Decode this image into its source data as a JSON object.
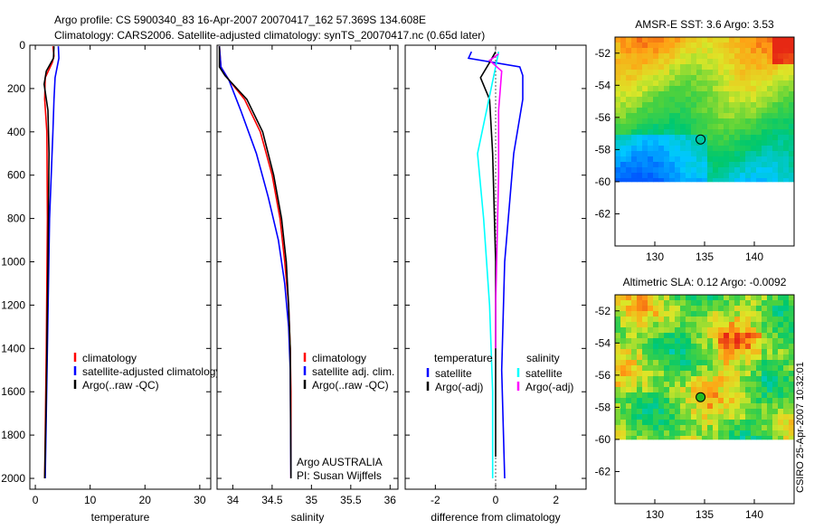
{
  "header": {
    "line1": "Argo profile: CS 5900340_83 16-Apr-2007 20070417_162 57.369S 134.608E",
    "line2": "Climatology: CARS2006. Satellite-adjusted climatology: synTS_20070417.nc (0.65d later)"
  },
  "side_label": "CSIRO 25-Apr-2007 10:32:01",
  "colors": {
    "climatology": "#ff0000",
    "satellite": "#0000ff",
    "argo": "#000000",
    "sat_salinity": "#00ffff",
    "argo_salinity": "#ff00ff"
  },
  "chart_data": [
    {
      "type": "line",
      "id": "temperature",
      "xlabel": "temperature",
      "ylabel": "depth",
      "xlim": [
        -1,
        32
      ],
      "ylim": [
        2050,
        0
      ],
      "xticks": [
        0,
        10,
        20,
        30
      ],
      "xtick_labels": [
        "0",
        "10",
        "20",
        "30"
      ],
      "yticks": [
        0,
        200,
        400,
        600,
        800,
        1000,
        1200,
        1400,
        1600,
        1800,
        2000
      ],
      "ytick_labels": [
        "0",
        "200",
        "400",
        "600",
        "800",
        "1000",
        "1200",
        "1400",
        "1600",
        "1800",
        "2000"
      ],
      "legend": [
        "climatology",
        "satellite-adjusted climatology",
        "Argo(..raw -QC)"
      ],
      "legend_loc": "lower-right",
      "series": [
        {
          "name": "climatology",
          "color": "red",
          "points": [
            [
              3.2,
              5
            ],
            [
              3.4,
              50
            ],
            [
              3.1,
              80
            ],
            [
              1.8,
              150
            ],
            [
              1.7,
              250
            ],
            [
              2.1,
              400
            ],
            [
              2.2,
              800
            ],
            [
              2.0,
              1400
            ],
            [
              1.7,
              2000
            ]
          ]
        },
        {
          "name": "satellite-adjusted climatology",
          "color": "blue",
          "points": [
            [
              4.2,
              5
            ],
            [
              4.3,
              60
            ],
            [
              3.6,
              150
            ],
            [
              3.4,
              250
            ],
            [
              3.2,
              400
            ],
            [
              2.6,
              800
            ],
            [
              2.2,
              1400
            ],
            [
              1.8,
              2000
            ]
          ]
        },
        {
          "name": "Argo(..raw -QC)",
          "color": "black",
          "points": [
            [
              3.4,
              5
            ],
            [
              3.3,
              60
            ],
            [
              2.0,
              120
            ],
            [
              1.6,
              180
            ],
            [
              2.3,
              300
            ],
            [
              2.5,
              500
            ],
            [
              2.3,
              1000
            ],
            [
              2.0,
              1600
            ],
            [
              1.7,
              2000
            ]
          ]
        }
      ]
    },
    {
      "type": "line",
      "id": "salinity",
      "xlabel": "salinity",
      "xlim": [
        33.8,
        36.1
      ],
      "ylim": [
        2050,
        0
      ],
      "xticks": [
        34,
        34.5,
        35,
        35.5,
        36
      ],
      "xtick_labels": [
        "34",
        "34.5",
        "35",
        "35.5",
        "36"
      ],
      "legend": [
        "climatology",
        "satellite adj. clim.",
        "Argo(..raw -QC)"
      ],
      "legend_loc": "lower-right",
      "annotation": [
        "Argo AUSTRALIA",
        "PI: Susan Wijffels"
      ],
      "series": [
        {
          "name": "climatology",
          "color": "red",
          "points": [
            [
              33.83,
              5
            ],
            [
              33.85,
              100
            ],
            [
              33.95,
              160
            ],
            [
              34.15,
              250
            ],
            [
              34.35,
              400
            ],
            [
              34.5,
              600
            ],
            [
              34.6,
              800
            ],
            [
              34.66,
              1000
            ],
            [
              34.71,
              1200
            ],
            [
              34.73,
              1400
            ],
            [
              34.74,
              1600
            ],
            [
              34.74,
              2000
            ]
          ]
        },
        {
          "name": "satellite adj. clim.",
          "color": "blue",
          "points": [
            [
              33.83,
              5
            ],
            [
              33.85,
              100
            ],
            [
              33.95,
              160
            ],
            [
              34.1,
              300
            ],
            [
              34.3,
              500
            ],
            [
              34.45,
              700
            ],
            [
              34.58,
              900
            ],
            [
              34.66,
              1100
            ],
            [
              34.71,
              1300
            ],
            [
              34.73,
              1500
            ],
            [
              34.74,
              2000
            ]
          ]
        },
        {
          "name": "Argo(..raw -QC)",
          "color": "black",
          "points": [
            [
              33.83,
              5
            ],
            [
              33.83,
              100
            ],
            [
              33.9,
              140
            ],
            [
              34.18,
              250
            ],
            [
              34.38,
              400
            ],
            [
              34.52,
              600
            ],
            [
              34.62,
              800
            ],
            [
              34.68,
              1000
            ],
            [
              34.71,
              1200
            ],
            [
              34.73,
              1400
            ],
            [
              34.74,
              2000
            ]
          ]
        }
      ]
    },
    {
      "type": "line",
      "id": "difference",
      "xlabel": "difference from climatology",
      "xlim": [
        -3,
        3
      ],
      "ylim": [
        2050,
        0
      ],
      "xticks": [
        -2,
        0,
        2
      ],
      "xtick_labels": [
        "-2",
        "0",
        "2"
      ],
      "legend_headers": [
        "temperature",
        "salinity"
      ],
      "legend": [
        "satellite",
        "Argo(-adj)",
        "satellite",
        "Argo(-adj)"
      ],
      "legend_loc": "lower",
      "series": [
        {
          "name": "temperature satellite",
          "color": "blue",
          "points": [
            [
              -0.8,
              30
            ],
            [
              -0.9,
              60
            ],
            [
              0.8,
              100
            ],
            [
              0.9,
              140
            ],
            [
              0.9,
              250
            ],
            [
              0.6,
              500
            ],
            [
              0.3,
              1000
            ],
            [
              0.2,
              1500
            ],
            [
              0.3,
              2000
            ]
          ]
        },
        {
          "name": "temperature Argo(-adj)",
          "color": "black",
          "points": [
            [
              0,
              30
            ],
            [
              -0.2,
              80
            ],
            [
              -0.5,
              150
            ],
            [
              -0.2,
              250
            ],
            [
              -0.1,
              500
            ],
            [
              0,
              1000
            ],
            [
              0,
              1500
            ],
            [
              0,
              1900
            ]
          ]
        },
        {
          "name": "salinity satellite",
          "color": "cyan",
          "points": [
            [
              0.1,
              30
            ],
            [
              0,
              100
            ],
            [
              -0.3,
              300
            ],
            [
              -0.6,
              500
            ],
            [
              -0.4,
              800
            ],
            [
              -0.2,
              1200
            ],
            [
              -0.1,
              1600
            ],
            [
              -0.1,
              2000
            ]
          ]
        },
        {
          "name": "salinity Argo(-adj)",
          "color": "magenta",
          "points": [
            [
              0.1,
              40
            ],
            [
              -0.2,
              70
            ],
            [
              0.2,
              120
            ],
            [
              0.1,
              300
            ],
            [
              0.1,
              600
            ],
            [
              0,
              1200
            ],
            [
              0,
              1400
            ]
          ]
        }
      ]
    },
    {
      "type": "heatmap",
      "id": "sst_map",
      "title": "AMSR-E SST: 3.6 Argo: 3.53",
      "xlim": [
        126,
        144
      ],
      "ylim": [
        -64,
        -51
      ],
      "xticks": [
        130,
        135,
        140
      ],
      "xtick_labels": [
        "130",
        "135",
        "140"
      ],
      "yticks": [
        -52,
        -54,
        -56,
        -58,
        -60,
        -62
      ],
      "ytick_labels": [
        "-52",
        "-54",
        "-56",
        "-58",
        "-60",
        "-62"
      ],
      "data_lat_range": [
        -60,
        -51
      ],
      "marker": [
        134.6,
        -57.37
      ]
    },
    {
      "type": "heatmap",
      "id": "sla_map",
      "title": "Altimetric SLA: 0.12 Argo: -0.0092",
      "xlim": [
        126,
        144
      ],
      "ylim": [
        -64,
        -51
      ],
      "xticks": [
        130,
        135,
        140
      ],
      "xtick_labels": [
        "130",
        "135",
        "140"
      ],
      "yticks": [
        -52,
        -54,
        -56,
        -58,
        -60,
        -62
      ],
      "ytick_labels": [
        "-52",
        "-54",
        "-56",
        "-58",
        "-60",
        "-62"
      ],
      "data_lat_range": [
        -60,
        -51
      ],
      "marker": [
        134.6,
        -57.37
      ]
    }
  ]
}
